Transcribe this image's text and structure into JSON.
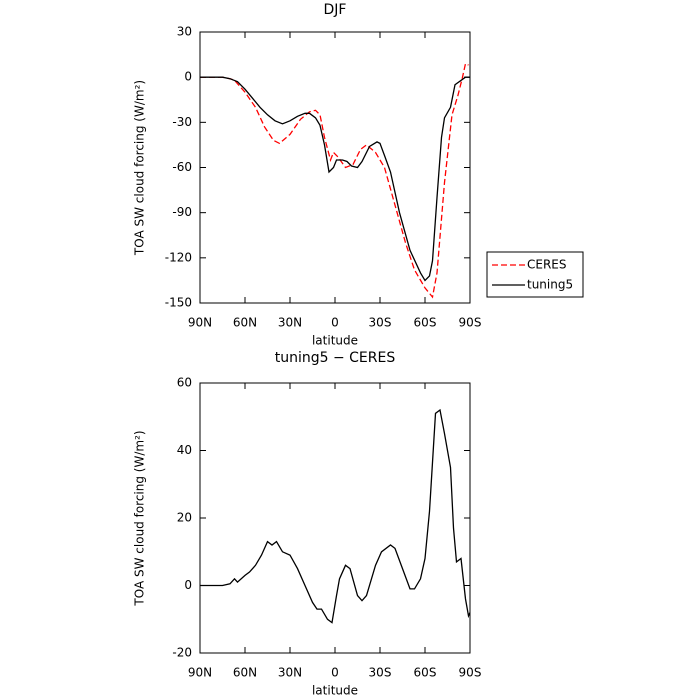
{
  "chart_data": [
    {
      "type": "line",
      "title": "DJF",
      "xlabel": "latitude",
      "ylabel": "TOA SW cloud forcing (W/m²)",
      "xlim": [
        90,
        -90
      ],
      "ylim": [
        -150,
        30
      ],
      "xticks": [
        {
          "value": 90,
          "label": "90N"
        },
        {
          "value": 60,
          "label": "60N"
        },
        {
          "value": 30,
          "label": "30N"
        },
        0,
        {
          "value": -30,
          "label": "30S"
        },
        {
          "value": -60,
          "label": "60S"
        },
        {
          "value": -90,
          "label": "90S"
        }
      ],
      "yticks": [
        30,
        0,
        -30,
        -60,
        -90,
        -120,
        -150
      ],
      "legend": "right",
      "series": [
        {
          "name": "CERES",
          "color": "#ff0000",
          "dash": true,
          "x": [
            90,
            75,
            70,
            67,
            60,
            53,
            47,
            41,
            37,
            30,
            23,
            17,
            13,
            10,
            7,
            3,
            1,
            -2,
            -7,
            -12,
            -17,
            -21,
            -27,
            -33,
            -40,
            -47,
            -53,
            -60,
            -65,
            -68,
            -73,
            -78,
            -82,
            -85,
            -87,
            -89
          ],
          "values": [
            0,
            0,
            -1,
            -2,
            -10,
            -20,
            -33,
            -42,
            -44,
            -38,
            -28,
            -23,
            -22,
            -25,
            -40,
            -55,
            -50,
            -53,
            -60,
            -58,
            -48,
            -45,
            -50,
            -60,
            -85,
            -110,
            -128,
            -140,
            -146,
            -130,
            -70,
            -25,
            -12,
            0,
            9,
            8
          ]
        },
        {
          "name": "tuning5",
          "color": "#000000",
          "dash": false,
          "x": [
            90,
            85,
            80,
            75,
            70,
            65,
            60,
            55,
            50,
            45,
            40,
            35,
            30,
            25,
            20,
            17,
            13,
            10,
            7,
            4,
            1,
            -1,
            -5,
            -8,
            -11,
            -15,
            -18,
            -23,
            -28,
            -30,
            -33,
            -37,
            -43,
            -50,
            -57,
            -60,
            -63,
            -65,
            -68,
            -71,
            -73,
            -77,
            -80,
            -87,
            -90
          ],
          "values": [
            0,
            0,
            0,
            0,
            -1,
            -3,
            -8,
            -14,
            -20,
            -25,
            -29,
            -31,
            -29,
            -26,
            -24,
            -24,
            -27,
            -32,
            -45,
            -63,
            -60,
            -55,
            -55,
            -56,
            -59,
            -60,
            -56,
            -46,
            -43,
            -44,
            -52,
            -63,
            -90,
            -115,
            -130,
            -135,
            -132,
            -122,
            -80,
            -40,
            -27,
            -20,
            -5,
            0,
            0
          ]
        }
      ]
    },
    {
      "type": "line",
      "title": "tuning5 − CERES",
      "xlabel": "latitude",
      "ylabel": "TOA SW cloud forcing (W/m²)",
      "xlim": [
        90,
        -90
      ],
      "ylim": [
        -20,
        60
      ],
      "xticks": [
        {
          "value": 90,
          "label": "90N"
        },
        {
          "value": 60,
          "label": "60N"
        },
        {
          "value": 30,
          "label": "30N"
        },
        0,
        {
          "value": -30,
          "label": "30S"
        },
        {
          "value": -60,
          "label": "60S"
        },
        {
          "value": -90,
          "label": "90S"
        }
      ],
      "yticks": [
        60,
        40,
        20,
        0,
        -20
      ],
      "series": [
        {
          "color": "#000000",
          "dash": false,
          "x": [
            90,
            75,
            70,
            67,
            65,
            60,
            57,
            53,
            49,
            45,
            42,
            39,
            35,
            30,
            25,
            20,
            15,
            12,
            9,
            5,
            2,
            -1,
            -3,
            -7,
            -10,
            -15,
            -18,
            -21,
            -27,
            -31,
            -37,
            -40,
            -45,
            -50,
            -53,
            -57,
            -60,
            -63,
            -67,
            -70,
            -73,
            -77,
            -79,
            -81,
            -84,
            -87,
            -89,
            -90
          ],
          "values": [
            0,
            0,
            0.5,
            2,
            1,
            3,
            4,
            6,
            9,
            13,
            12,
            13,
            10,
            9,
            5,
            0,
            -5,
            -7,
            -7,
            -10,
            -11,
            -3,
            2,
            6,
            5,
            -3,
            -4.5,
            -3,
            6,
            10,
            12,
            11,
            5,
            -1,
            -1,
            2,
            8,
            22,
            51,
            52,
            45,
            35,
            17,
            7,
            8,
            -4,
            -9,
            -8
          ]
        }
      ]
    }
  ]
}
